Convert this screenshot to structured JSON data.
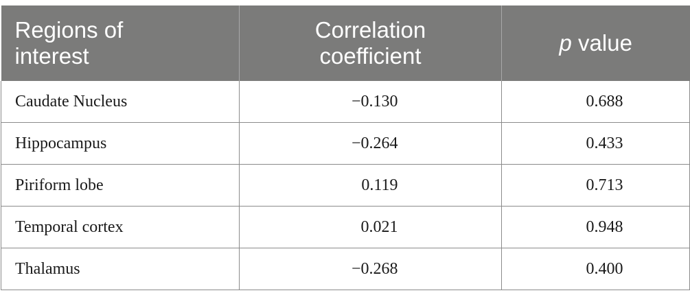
{
  "table": {
    "headers": {
      "col1_line1": "Regions of",
      "col1_line2": "interest",
      "col2_line1": "Correlation",
      "col2_line2": "coefficient",
      "col3_italic": "p",
      "col3_rest": " value"
    },
    "rows": [
      {
        "region": "Caudate Nucleus",
        "coefficient": "−0.130",
        "p": "0.688"
      },
      {
        "region": "Hippocampus",
        "coefficient": "−0.264",
        "p": "0.433"
      },
      {
        "region": "Piriform lobe",
        "coefficient": "0.119",
        "p": "0.713"
      },
      {
        "region": "Temporal cortex",
        "coefficient": "0.021",
        "p": "0.948"
      },
      {
        "region": "Thalamus",
        "coefficient": "−0.268",
        "p": "0.400"
      }
    ],
    "header_bg": "#7b7b7a"
  }
}
